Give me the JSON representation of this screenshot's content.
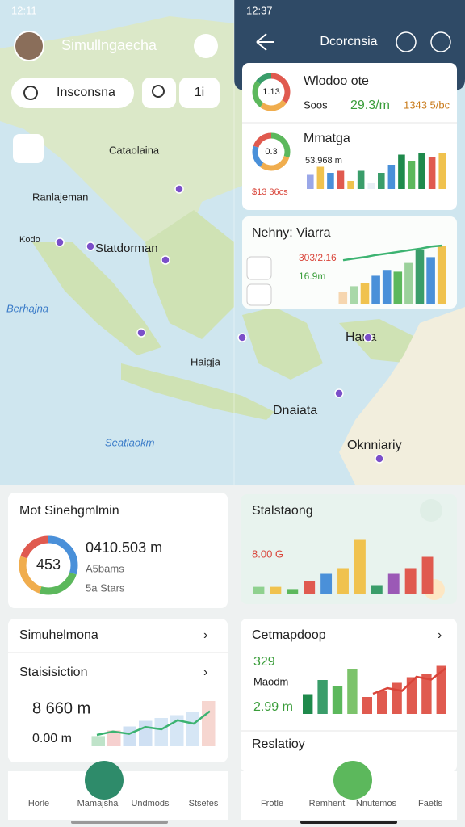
{
  "left_screen": {
    "status_time": "12:11",
    "header_title": "Simullngaecha",
    "search_placeholder": "Insconsna",
    "filter_button": "1i",
    "map_labels": [
      "Cataolaina",
      "Ranlajeman",
      "Kodo",
      "Statdorman",
      "Berhajna",
      "Haigja",
      "Seatlaokm"
    ],
    "summary_card": {
      "title": "Mot Sinehgmlmin",
      "donut_label": "453",
      "donut_segments": [
        30,
        25,
        25,
        20
      ],
      "donut_colors": [
        "#4a90d9",
        "#5cb85c",
        "#f0ad4e",
        "#e05a4f"
      ],
      "main_value": "0410.503 m",
      "line_1": "A5bams",
      "line_2": "5a Stars"
    },
    "stats_card": {
      "title": "Simuhelmona",
      "subtitle": "Staisisiction",
      "value_1": "8 660 m",
      "value_2": "0.00 m",
      "bars": [
        18,
        28,
        35,
        45,
        50,
        55,
        60,
        80
      ],
      "bar_colors": [
        "#bfe3c9",
        "#f6d0cf",
        "#cfe0f3",
        "#cfe0f3",
        "#d6e6f5",
        "#d6e6f5",
        "#d6e6f5",
        "#f6d6d0"
      ],
      "line": [
        20,
        26,
        22,
        34,
        30,
        46,
        40,
        62
      ],
      "line_color": "#3cb371"
    },
    "nav": [
      "Horle",
      "Mamajsha",
      "Undmods",
      "Stsefes"
    ]
  },
  "right_screen": {
    "status_time": "12:37",
    "header_title": "Dcorcnsia",
    "map_labels": [
      "Hana",
      "Dnaiata",
      "Oknniariy"
    ],
    "card_1": {
      "title": "Wlodoo ote",
      "label": "Soos",
      "value_1": "29.3/m",
      "value_2": "1343 5/bc",
      "donut_label": "1.13",
      "donut_segments": [
        35,
        25,
        25,
        15
      ],
      "donut_colors": [
        "#e05a4f",
        "#f0ad4e",
        "#5cb85c",
        "#3a9d6a"
      ]
    },
    "card_2": {
      "title": "Mmatga",
      "value_1": "53.968 m",
      "value_2": "$13 36cs",
      "donut_label": "0.3",
      "donut_segments": [
        30,
        30,
        20,
        20
      ],
      "donut_colors": [
        "#5cb85c",
        "#f0ad4e",
        "#4a90d9",
        "#e05a4f"
      ],
      "bars": [
        35,
        55,
        40,
        45,
        20,
        45,
        15,
        40,
        60,
        85,
        70,
        90,
        80,
        90
      ],
      "bar_colors": [
        "#9aa7e8",
        "#f0c24e",
        "#4a90d9",
        "#e05a4f",
        "#f0c24e",
        "#3a9d6a",
        "#e8eef5",
        "#3a9d6a",
        "#4a90d9",
        "#1f8a4c",
        "#5cb85c",
        "#1f8a4c",
        "#e05a4f",
        "#f0c24e"
      ]
    },
    "card_3": {
      "title": "Nehny: Viarra",
      "value_1": "303/2.16",
      "value_2": "16.9m",
      "bars": [
        20,
        30,
        35,
        48,
        58,
        55,
        70,
        92,
        80,
        100
      ],
      "bar_colors": [
        "#f6d6b0",
        "#a8d8a8",
        "#f0c24e",
        "#4a90d9",
        "#4a90d9",
        "#5cb85c",
        "#9bd19b",
        "#3a9d6a",
        "#4a90d9",
        "#f0c24e"
      ],
      "line": [
        30,
        38,
        45,
        55,
        62,
        70,
        78,
        85,
        95,
        100
      ],
      "line_color": "#3cb371"
    },
    "card_4": {
      "title": "Stalstaong",
      "value": "8.00 G",
      "bars": [
        12,
        12,
        8,
        22,
        35,
        45,
        95,
        15,
        35,
        45,
        65
      ],
      "bar_colors": [
        "#8fd18f",
        "#f0c24e",
        "#5cb85c",
        "#e05a4f",
        "#4a90d9",
        "#f0c24e",
        "#f0c24e",
        "#3a9d6a",
        "#9b59b6",
        "#e05a4f",
        "#e05a4f"
      ]
    },
    "card_5": {
      "title": "Cetmapdoop",
      "value_1": "329",
      "label": "Maodm",
      "value_2": "2.99 m",
      "bars": [
        35,
        60,
        50,
        80,
        30,
        40,
        55,
        65,
        70,
        85
      ],
      "bar_colors": [
        "#1f8a4c",
        "#3a9d6a",
        "#5cb85c",
        "#7cc36b",
        "#e05a4f",
        "#e05a4f",
        "#e05a4f",
        "#e05a4f",
        "#e05a4f",
        "#e05a4f"
      ],
      "line": [
        30,
        40,
        35,
        60,
        55,
        75
      ],
      "line_color": "#d9453a"
    },
    "card_6": {
      "title": "Reslatioy"
    },
    "nav": [
      "Frotle",
      "Remhent",
      "Nnutemos",
      "Faetls"
    ]
  }
}
